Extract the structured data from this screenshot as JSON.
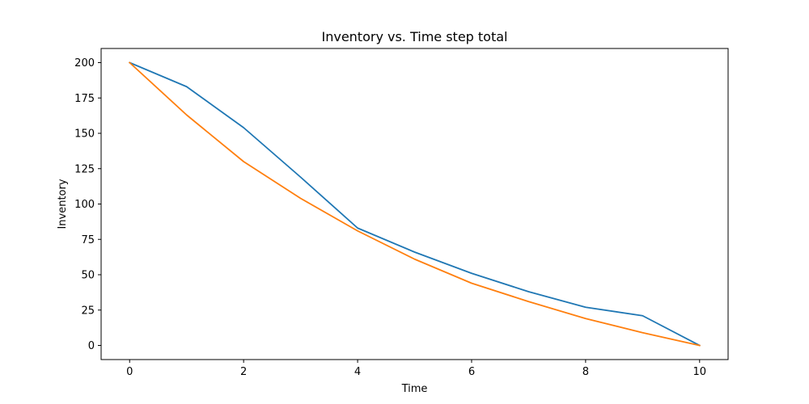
{
  "chart_data": {
    "type": "line",
    "title": "Inventory vs. Time step total",
    "xlabel": "Time",
    "ylabel": "Inventory",
    "xlim": [
      -0.5,
      10.5
    ],
    "ylim": [
      -10,
      210
    ],
    "xticks": [
      0,
      2,
      4,
      6,
      8,
      10
    ],
    "yticks": [
      0,
      25,
      50,
      75,
      100,
      125,
      150,
      175,
      200
    ],
    "grid": false,
    "x": [
      0,
      1,
      2,
      3,
      4,
      5,
      6,
      7,
      8,
      9,
      10
    ],
    "series": [
      {
        "color": "#1f77b4",
        "values": [
          200,
          183,
          154,
          119,
          83,
          66,
          51,
          38,
          27,
          21,
          0
        ]
      },
      {
        "color": "#ff7f0e",
        "values": [
          200,
          163,
          130,
          104,
          81,
          61,
          44,
          31,
          19,
          9,
          0
        ]
      }
    ]
  }
}
